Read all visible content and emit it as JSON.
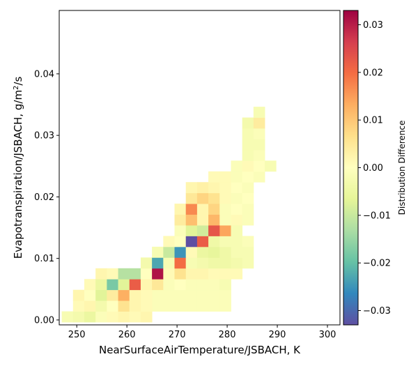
{
  "chart_data": {
    "type": "heatmap",
    "title": "",
    "xlabel": "NearSurfaceAirTemperature/JSBACH,  K",
    "ylabel_main": "Evapotranspiration/JSBACH,  g/m",
    "ylabel_sup": "2",
    "ylabel_tail": "/s",
    "xlim": [
      246.5,
      302.5
    ],
    "ylim": [
      -0.0008,
      0.0503
    ],
    "x_ticks": [
      250,
      260,
      270,
      280,
      290,
      300
    ],
    "x_tick_labels": [
      "250",
      "260",
      "270",
      "280",
      "290",
      "300"
    ],
    "y_ticks": [
      0.0,
      0.01,
      0.02,
      0.03,
      0.04
    ],
    "y_tick_labels": [
      "0.00",
      "0.01",
      "0.02",
      "0.03",
      "0.04"
    ],
    "x_bin_start": 247.0,
    "x_bin_width": 2.25,
    "y_bin_start": -0.00035,
    "y_bin_width": 0.00175,
    "colorbar": {
      "label": "Distribution Difference",
      "vmin": -0.033,
      "vmax": 0.033,
      "ticks": [
        -0.03,
        -0.02,
        -0.01,
        0.0,
        0.01,
        0.02,
        0.03
      ],
      "tick_labels": [
        "−0.03",
        "−0.02",
        "−0.01",
        "0.00",
        "0.01",
        "0.02",
        "0.03"
      ],
      "colormap": "Spectral_r"
    },
    "cells": [
      [
        0,
        0,
        -0.002
      ],
      [
        1,
        0,
        -0.003
      ],
      [
        2,
        0,
        -0.005
      ],
      [
        3,
        0,
        -0.001
      ],
      [
        4,
        0,
        0.001
      ],
      [
        5,
        0,
        0.002
      ],
      [
        6,
        0,
        0.001
      ],
      [
        7,
        0,
        0.002
      ],
      [
        1,
        1,
        0.001
      ],
      [
        2,
        1,
        0.002
      ],
      [
        3,
        1,
        -0.003
      ],
      [
        4,
        1,
        0.0
      ],
      [
        5,
        1,
        0.006
      ],
      [
        6,
        1,
        0.002
      ],
      [
        7,
        1,
        0.001
      ],
      [
        8,
        1,
        -0.001
      ],
      [
        9,
        1,
        -0.001
      ],
      [
        10,
        1,
        -0.001
      ],
      [
        11,
        1,
        -0.001
      ],
      [
        12,
        1,
        -0.001
      ],
      [
        13,
        1,
        -0.001
      ],
      [
        14,
        1,
        -0.001
      ],
      [
        1,
        2,
        0.002
      ],
      [
        2,
        2,
        0.0
      ],
      [
        3,
        2,
        -0.007
      ],
      [
        4,
        2,
        0.004
      ],
      [
        5,
        2,
        0.013
      ],
      [
        6,
        2,
        0.002
      ],
      [
        7,
        2,
        0.001
      ],
      [
        8,
        2,
        -0.001
      ],
      [
        9,
        2,
        -0.001
      ],
      [
        10,
        2,
        -0.001
      ],
      [
        11,
        2,
        -0.001
      ],
      [
        12,
        2,
        -0.001
      ],
      [
        13,
        2,
        -0.001
      ],
      [
        14,
        2,
        -0.001
      ],
      [
        2,
        3,
        0.001
      ],
      [
        3,
        3,
        -0.005
      ],
      [
        4,
        3,
        -0.018
      ],
      [
        5,
        3,
        -0.007
      ],
      [
        6,
        3,
        0.022
      ],
      [
        7,
        3,
        0.002
      ],
      [
        8,
        3,
        0.005
      ],
      [
        9,
        3,
        -0.001
      ],
      [
        10,
        3,
        0.0
      ],
      [
        11,
        3,
        -0.001
      ],
      [
        12,
        3,
        -0.001
      ],
      [
        13,
        3,
        -0.001
      ],
      [
        14,
        3,
        -0.002
      ],
      [
        3,
        4,
        0.002
      ],
      [
        4,
        4,
        0.001
      ],
      [
        5,
        4,
        -0.012
      ],
      [
        6,
        4,
        -0.012
      ],
      [
        7,
        4,
        0.0
      ],
      [
        8,
        4,
        0.031
      ],
      [
        9,
        4,
        0.001
      ],
      [
        10,
        4,
        0.006
      ],
      [
        11,
        4,
        0.002
      ],
      [
        12,
        4,
        0.002
      ],
      [
        13,
        4,
        0.001
      ],
      [
        14,
        4,
        0.001
      ],
      [
        15,
        4,
        0.001
      ],
      [
        7,
        5,
        -0.003
      ],
      [
        8,
        5,
        -0.023
      ],
      [
        9,
        5,
        -0.002
      ],
      [
        10,
        5,
        0.02
      ],
      [
        11,
        5,
        -0.002
      ],
      [
        12,
        5,
        -0.003
      ],
      [
        13,
        5,
        -0.004
      ],
      [
        14,
        5,
        -0.004
      ],
      [
        15,
        5,
        -0.003
      ],
      [
        16,
        5,
        -0.002
      ],
      [
        8,
        6,
        -0.002
      ],
      [
        9,
        6,
        -0.01
      ],
      [
        10,
        6,
        -0.025
      ],
      [
        11,
        6,
        0.001
      ],
      [
        12,
        6,
        -0.005
      ],
      [
        13,
        6,
        -0.006
      ],
      [
        14,
        6,
        -0.004
      ],
      [
        15,
        6,
        -0.002
      ],
      [
        16,
        6,
        -0.002
      ],
      [
        9,
        7,
        0.001
      ],
      [
        10,
        7,
        0.0
      ],
      [
        11,
        7,
        -0.033
      ],
      [
        12,
        7,
        0.022
      ],
      [
        13,
        7,
        -0.004
      ],
      [
        14,
        7,
        -0.002
      ],
      [
        15,
        7,
        -0.002
      ],
      [
        16,
        7,
        -0.001
      ],
      [
        10,
        8,
        -0.001
      ],
      [
        11,
        8,
        -0.007
      ],
      [
        12,
        8,
        -0.009
      ],
      [
        13,
        8,
        0.023
      ],
      [
        14,
        8,
        0.014
      ],
      [
        15,
        8,
        -0.002
      ],
      [
        10,
        9,
        0.004
      ],
      [
        11,
        9,
        0.011
      ],
      [
        12,
        9,
        0.002
      ],
      [
        13,
        9,
        0.012
      ],
      [
        14,
        9,
        -0.001
      ],
      [
        15,
        9,
        0.001
      ],
      [
        16,
        9,
        -0.001
      ],
      [
        10,
        10,
        0.002
      ],
      [
        11,
        10,
        0.017
      ],
      [
        12,
        10,
        0.002
      ],
      [
        13,
        10,
        0.008
      ],
      [
        14,
        10,
        -0.001
      ],
      [
        15,
        10,
        0.0
      ],
      [
        16,
        10,
        -0.001
      ],
      [
        11,
        11,
        0.005
      ],
      [
        12,
        11,
        0.008
      ],
      [
        13,
        11,
        0.006
      ],
      [
        14,
        11,
        0.001
      ],
      [
        15,
        11,
        -0.001
      ],
      [
        16,
        11,
        0.0
      ],
      [
        11,
        12,
        0.002
      ],
      [
        12,
        12,
        0.003
      ],
      [
        13,
        12,
        0.002
      ],
      [
        14,
        12,
        0.001
      ],
      [
        15,
        12,
        0.0
      ],
      [
        16,
        12,
        -0.001
      ],
      [
        13,
        13,
        0.001
      ],
      [
        14,
        13,
        0.001
      ],
      [
        15,
        13,
        -0.001
      ],
      [
        16,
        13,
        0.0
      ],
      [
        17,
        13,
        -0.001
      ],
      [
        15,
        14,
        -0.001
      ],
      [
        16,
        14,
        0.001
      ],
      [
        17,
        14,
        0.0
      ],
      [
        18,
        14,
        -0.002
      ],
      [
        16,
        15,
        -0.002
      ],
      [
        17,
        15,
        -0.001
      ],
      [
        16,
        16,
        -0.002
      ],
      [
        17,
        16,
        -0.002
      ],
      [
        16,
        17,
        -0.002
      ],
      [
        17,
        17,
        -0.001
      ],
      [
        16,
        18,
        -0.003
      ],
      [
        17,
        18,
        0.004
      ],
      [
        17,
        19,
        -0.002
      ]
    ]
  }
}
